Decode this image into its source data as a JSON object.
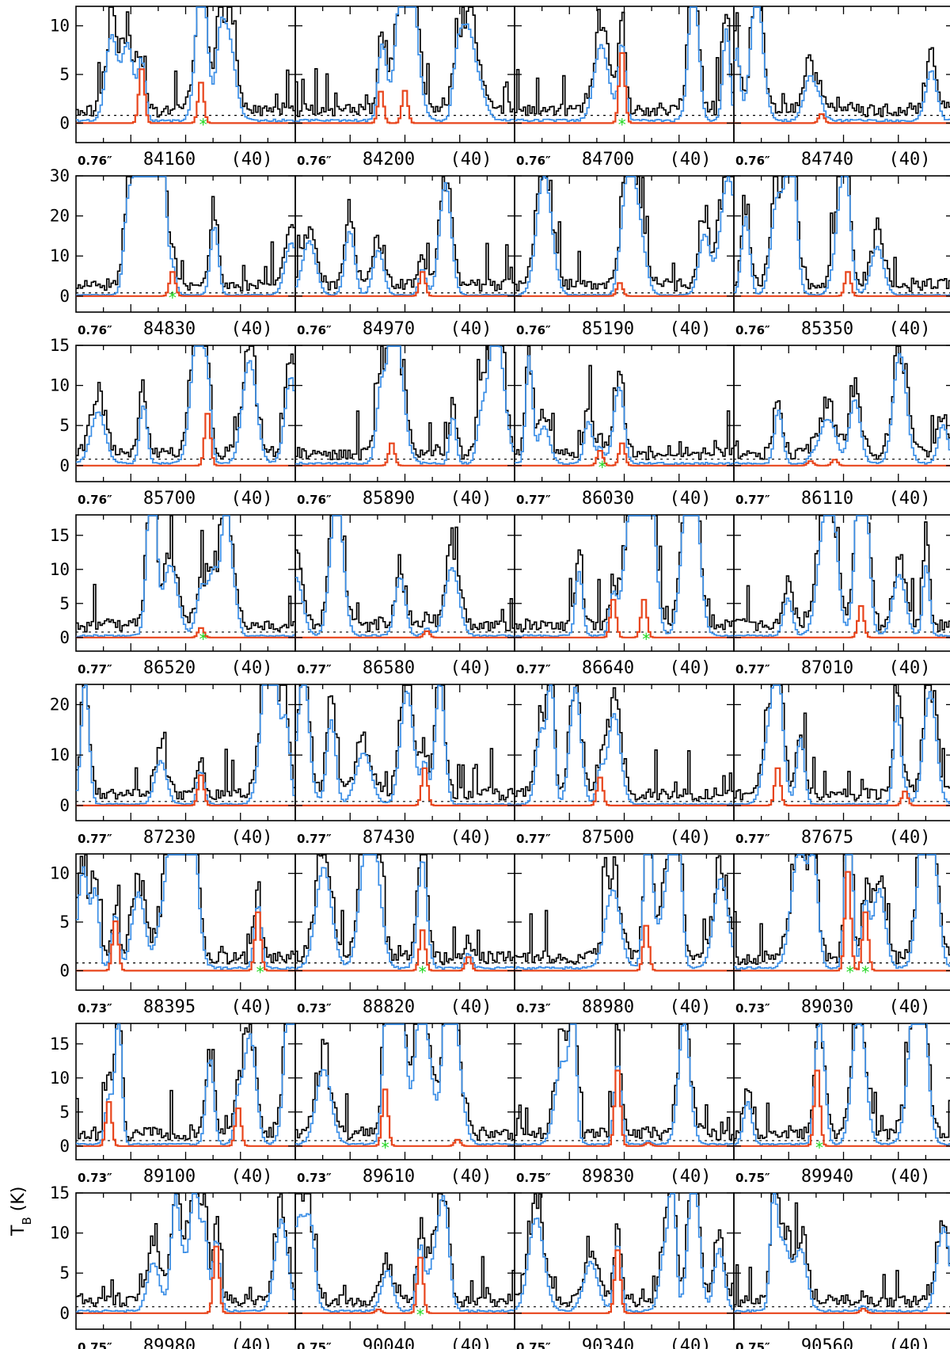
{
  "chart_data": {
    "type": "line",
    "grid": false,
    "ylabel_main": "T",
    "ylabel_sub": "B",
    "ylabel_unit": " (K)",
    "line_colors": {
      "observed": "#000000",
      "full_model": "#3a8ee6",
      "species_model": "#e8451c",
      "marker": "#1fd81f"
    },
    "rows": [
      {
        "ylim": [
          -2,
          12
        ],
        "yticks": [
          0,
          5,
          10
        ],
        "yticklabels": [
          "0",
          "5",
          "10"
        ]
      },
      {
        "ylim": [
          -4,
          30
        ],
        "yticks": [
          0,
          10,
          20,
          30
        ],
        "yticklabels": [
          "0",
          "10",
          "20",
          "30"
        ]
      },
      {
        "ylim": [
          -2,
          15
        ],
        "yticks": [
          0,
          5,
          10,
          15
        ],
        "yticklabels": [
          "0",
          "5",
          "10",
          "15"
        ]
      },
      {
        "ylim": [
          -2,
          18
        ],
        "yticks": [
          0,
          5,
          10,
          15
        ],
        "yticklabels": [
          "0",
          "5",
          "10",
          "15"
        ]
      },
      {
        "ylim": [
          -3,
          24
        ],
        "yticks": [
          0,
          10,
          20
        ],
        "yticklabels": [
          "0",
          "10",
          "20"
        ]
      },
      {
        "ylim": [
          -2,
          12
        ],
        "yticks": [
          0,
          5,
          10
        ],
        "yticklabels": [
          "0",
          "5",
          "10"
        ]
      },
      {
        "ylim": [
          -2,
          18
        ],
        "yticks": [
          0,
          5,
          10,
          15
        ],
        "yticklabels": [
          "0",
          "5",
          "10",
          "15"
        ]
      },
      {
        "ylim": [
          -2,
          15
        ],
        "yticks": [
          0,
          5,
          10,
          15
        ],
        "yticklabels": [
          "0",
          "5",
          "10",
          "15"
        ]
      }
    ],
    "panels": [
      {
        "row": 0,
        "col": 0,
        "freq": "84160",
        "width": "(40)",
        "beam": "0.76″",
        "lines": [
          [
            30,
            6.0
          ],
          [
            57,
            4.5
          ]
        ],
        "stars": [
          58
        ]
      },
      {
        "row": 0,
        "col": 1,
        "freq": "84200",
        "width": "(40)",
        "beam": "0.76″",
        "lines": [
          [
            39,
            3.5
          ],
          [
            50,
            3.6
          ]
        ],
        "stars": []
      },
      {
        "row": 0,
        "col": 2,
        "freq": "84700",
        "width": "(40)",
        "beam": "0.76″",
        "lines": [
          [
            49,
            7.8
          ]
        ],
        "stars": [
          49
        ]
      },
      {
        "row": 0,
        "col": 3,
        "freq": "84740",
        "width": "(40)",
        "beam": "0.76″",
        "lines": [
          [
            40,
            1.0
          ]
        ],
        "stars": []
      },
      {
        "row": 1,
        "col": 0,
        "freq": "84830",
        "width": "(40)",
        "beam": "0.76″",
        "lines": [
          [
            44,
            6.5
          ]
        ],
        "stars": [
          44
        ]
      },
      {
        "row": 1,
        "col": 1,
        "freq": "84970",
        "width": "(40)",
        "beam": "0.76″",
        "lines": [
          [
            58,
            6.5
          ]
        ],
        "stars": []
      },
      {
        "row": 1,
        "col": 2,
        "freq": "85190",
        "width": "(40)",
        "beam": "0.76″",
        "lines": [
          [
            48,
            3.5
          ]
        ],
        "stars": []
      },
      {
        "row": 1,
        "col": 3,
        "freq": "85350",
        "width": "(40)",
        "beam": "0.76″",
        "lines": [
          [
            52,
            6.5
          ]
        ],
        "stars": []
      },
      {
        "row": 2,
        "col": 0,
        "freq": "85700",
        "width": "(40)",
        "beam": "0.76″",
        "lines": [
          [
            60,
            7.0
          ]
        ],
        "stars": []
      },
      {
        "row": 2,
        "col": 1,
        "freq": "85890",
        "width": "(40)",
        "beam": "0.76″",
        "lines": [
          [
            44,
            3.0
          ]
        ],
        "stars": []
      },
      {
        "row": 2,
        "col": 2,
        "freq": "86030",
        "width": "(40)",
        "beam": "0.77″",
        "lines": [
          [
            39,
            2.0
          ],
          [
            49,
            3.0
          ]
        ],
        "stars": [
          40
        ]
      },
      {
        "row": 2,
        "col": 3,
        "freq": "86110",
        "width": "(40)",
        "beam": "0.77″",
        "lines": [
          [
            35,
            0.6
          ],
          [
            46,
            0.8
          ]
        ],
        "stars": []
      },
      {
        "row": 3,
        "col": 0,
        "freq": "86520",
        "width": "(40)",
        "beam": "0.77″",
        "lines": [
          [
            57,
            1.5
          ]
        ],
        "stars": [
          58
        ]
      },
      {
        "row": 3,
        "col": 1,
        "freq": "86580",
        "width": "(40)",
        "beam": "0.77″",
        "lines": [
          [
            60,
            1.0
          ]
        ],
        "stars": []
      },
      {
        "row": 3,
        "col": 2,
        "freq": "86640",
        "width": "(40)",
        "beam": "0.77″",
        "lines": [
          [
            45,
            6.0
          ],
          [
            59,
            6.0
          ]
        ],
        "stars": [
          60
        ]
      },
      {
        "row": 3,
        "col": 3,
        "freq": "87010",
        "width": "(40)",
        "beam": "0.77″",
        "lines": [
          [
            58,
            5.0
          ]
        ],
        "stars": []
      },
      {
        "row": 4,
        "col": 0,
        "freq": "87230",
        "width": "(40)",
        "beam": "0.77″",
        "lines": [
          [
            57,
            6.5
          ]
        ],
        "stars": []
      },
      {
        "row": 4,
        "col": 1,
        "freq": "87430",
        "width": "(40)",
        "beam": "0.77″",
        "lines": [
          [
            59,
            8.0
          ]
        ],
        "stars": []
      },
      {
        "row": 4,
        "col": 2,
        "freq": "87500",
        "width": "(40)",
        "beam": "0.77″",
        "lines": [
          [
            39,
            6.0
          ]
        ],
        "stars": []
      },
      {
        "row": 4,
        "col": 3,
        "freq": "87675",
        "width": "(40)",
        "beam": "0.77″",
        "lines": [
          [
            20,
            8.0
          ],
          [
            78,
            3.0
          ]
        ],
        "stars": []
      },
      {
        "row": 5,
        "col": 0,
        "freq": "88395",
        "width": "(40)",
        "beam": "0.73″",
        "lines": [
          [
            18,
            5.5
          ],
          [
            83,
            6.5
          ]
        ],
        "stars": [
          84
        ]
      },
      {
        "row": 5,
        "col": 1,
        "freq": "88820",
        "width": "(40)",
        "beam": "0.73″",
        "lines": [
          [
            58,
            4.5
          ],
          [
            79,
            1.5
          ]
        ],
        "stars": [
          58
        ]
      },
      {
        "row": 5,
        "col": 2,
        "freq": "88980",
        "width": "(40)",
        "beam": "0.73″",
        "lines": [
          [
            60,
            5.0
          ]
        ],
        "stars": []
      },
      {
        "row": 5,
        "col": 3,
        "freq": "89030",
        "width": "(40)",
        "beam": "0.73″",
        "lines": [
          [
            52,
            11.0
          ],
          [
            60,
            6.5
          ]
        ],
        "stars": [
          53,
          60
        ]
      },
      {
        "row": 6,
        "col": 0,
        "freq": "89100",
        "width": "(40)",
        "beam": "0.73″",
        "lines": [
          [
            15,
            7.0
          ],
          [
            74,
            6.0
          ]
        ],
        "stars": []
      },
      {
        "row": 6,
        "col": 1,
        "freq": "89610",
        "width": "(40)",
        "beam": "0.73″",
        "lines": [
          [
            41,
            9.0
          ],
          [
            74,
            1.0
          ]
        ],
        "stars": [
          41
        ]
      },
      {
        "row": 6,
        "col": 2,
        "freq": "89830",
        "width": "(40)",
        "beam": "0.75″",
        "lines": [
          [
            47,
            12.0
          ],
          [
            61,
            0.5
          ]
        ],
        "stars": []
      },
      {
        "row": 6,
        "col": 3,
        "freq": "89940",
        "width": "(40)",
        "beam": "0.75″",
        "lines": [
          [
            38,
            12.0
          ]
        ],
        "stars": [
          39
        ]
      },
      {
        "row": 7,
        "col": 0,
        "freq": "89980",
        "width": "(40)",
        "beam": "0.75″",
        "lines": [
          [
            64,
            9.0
          ]
        ],
        "stars": []
      },
      {
        "row": 7,
        "col": 1,
        "freq": "90040",
        "width": "(40)",
        "beam": "0.75″",
        "lines": [
          [
            38,
            0.5
          ],
          [
            57,
            7.5
          ]
        ],
        "stars": [
          57
        ]
      },
      {
        "row": 7,
        "col": 2,
        "freq": "90340",
        "width": "(40)",
        "beam": "0.75″",
        "lines": [
          [
            47,
            8.5
          ]
        ],
        "stars": []
      },
      {
        "row": 7,
        "col": 3,
        "freq": "90560",
        "width": "(40)",
        "beam": "0.75″",
        "lines": [
          [
            59,
            0.6
          ]
        ],
        "stars": []
      }
    ]
  }
}
